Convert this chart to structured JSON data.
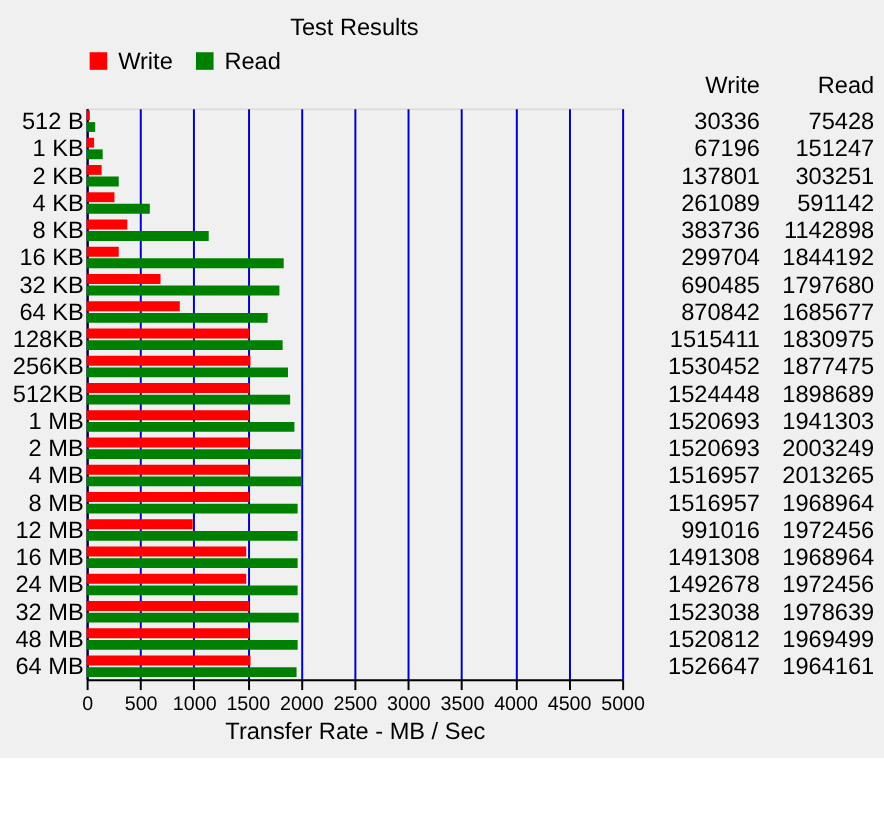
{
  "chart_data": {
    "type": "bar",
    "orientation": "horizontal",
    "title": "Test Results",
    "xlabel": "Transfer Rate - MB / Sec",
    "categories": [
      "512 B",
      "1 KB",
      "2 KB",
      "4 KB",
      "8 KB",
      "16 KB",
      "32 KB",
      "64 KB",
      "128KB",
      "256KB",
      "512KB",
      "1 MB",
      "2 MB",
      "4 MB",
      "8 MB",
      "12 MB",
      "16 MB",
      "24 MB",
      "32 MB",
      "48 MB",
      "64 MB"
    ],
    "series": [
      {
        "name": "Write",
        "color": "#ff0000",
        "values": [
          30,
          70,
          140,
          260,
          380,
          300,
          690,
          870,
          1520,
          1530,
          1520,
          1520,
          1520,
          1520,
          1520,
          990,
          1490,
          1490,
          1520,
          1520,
          1530
        ]
      },
      {
        "name": "Read",
        "color": "#008000",
        "values": [
          80,
          150,
          300,
          590,
          1140,
          1840,
          1800,
          1690,
          1830,
          1880,
          1900,
          1940,
          2000,
          2010,
          1970,
          1970,
          1970,
          1970,
          1980,
          1970,
          1960
        ]
      }
    ],
    "annotations": [
      "30336",
      "75428",
      "67196",
      "151247",
      "137801",
      "303251",
      "261089",
      "591142",
      "383736",
      "1142898",
      "299704",
      "1844192",
      "690485",
      "1797680",
      "870842",
      "1685677",
      "1515411",
      "1830975",
      "1530452",
      "1877475",
      "1524448",
      "1898689",
      "1520693",
      "1941303",
      "1520693",
      "2003249",
      "1516957",
      "2013265",
      "1516957",
      "1968964",
      "991016",
      "1972456",
      "1491308",
      "1968964",
      "1492678",
      "1972456",
      "1523038",
      "1978639",
      "1520812",
      "1969499",
      "1526647",
      "1964161"
    ],
    "xlim": [
      0,
      5000
    ],
    "xticks": [
      0,
      500,
      1000,
      1500,
      2000,
      2500,
      3000,
      3500,
      4000,
      4500,
      5000
    ],
    "grid": "x",
    "legend": "top"
  }
}
